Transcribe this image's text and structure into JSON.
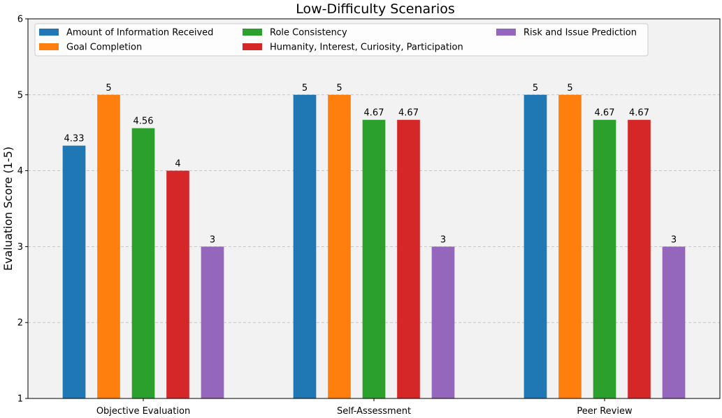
{
  "chart_data": {
    "type": "bar",
    "title": "Low-Difficulty Scenarios",
    "xlabel": "",
    "ylabel": "Evaluation Score (1-5)",
    "ylim": [
      1,
      6
    ],
    "yticks": [
      1,
      2,
      3,
      4,
      5,
      6
    ],
    "grid": "y-dashed",
    "legend_position": "top",
    "categories": [
      "Objective Evaluation",
      "Self-Assessment",
      "Peer Review"
    ],
    "series": [
      {
        "name": "Amount of Information Received",
        "color": "#1f77b4",
        "values": [
          4.33,
          5,
          5
        ],
        "labels": [
          "4.33",
          "5",
          "5"
        ]
      },
      {
        "name": "Goal Completion",
        "color": "#ff7f0e",
        "values": [
          5,
          5,
          5
        ],
        "labels": [
          "5",
          "5",
          "5"
        ]
      },
      {
        "name": "Role Consistency",
        "color": "#2ca02c",
        "values": [
          4.56,
          4.67,
          4.67
        ],
        "labels": [
          "4.56",
          "4.67",
          "4.67"
        ]
      },
      {
        "name": "Humanity, Interest, Curiosity, Participation",
        "color": "#d62728",
        "values": [
          4,
          4.67,
          4.67
        ],
        "labels": [
          "4",
          "4.67",
          "4.67"
        ]
      },
      {
        "name": "Risk and Issue Prediction",
        "color": "#9467bd",
        "values": [
          3,
          3,
          3
        ],
        "labels": [
          "3",
          "3",
          "3"
        ]
      }
    ]
  }
}
